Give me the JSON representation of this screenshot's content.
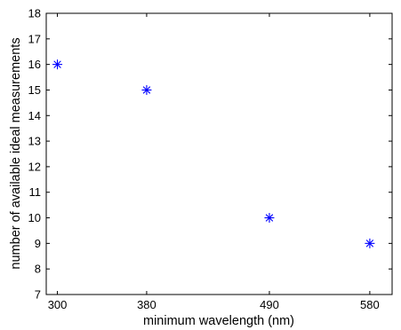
{
  "chart_data": {
    "type": "scatter",
    "title": "",
    "xlabel": "minimum wavelength (nm)",
    "ylabel": "number of available ideal measurements",
    "xlim": [
      290,
      600
    ],
    "ylim": [
      7,
      18
    ],
    "xticks": [
      300,
      380,
      490,
      580
    ],
    "yticks": [
      7,
      8,
      9,
      10,
      11,
      12,
      13,
      14,
      15,
      16,
      17,
      18
    ],
    "marker": "asterisk",
    "grid": false,
    "series": [
      {
        "color": "#0000ff",
        "x": [
          300,
          380,
          490,
          580
        ],
        "y": [
          16,
          15,
          10,
          9
        ]
      }
    ]
  }
}
